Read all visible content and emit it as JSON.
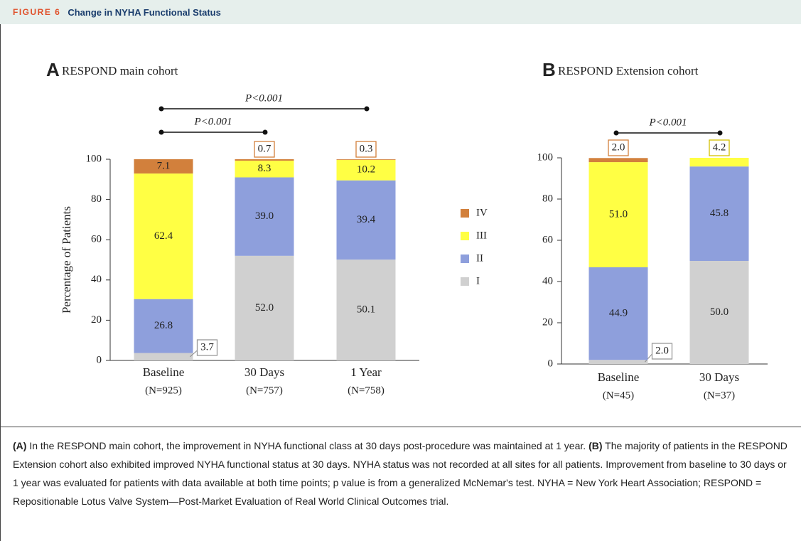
{
  "header": {
    "label": "FIGURE 6",
    "title": "Change in NYHA Functional Status"
  },
  "chart_data": [
    {
      "type": "bar",
      "stacked": true,
      "panel": "A",
      "title": "RESPOND main cohort",
      "ylabel": "Percentage of Patients",
      "categories": [
        "Baseline",
        "30 Days",
        "1 Year"
      ],
      "category_notes": [
        "(N=925)",
        "(N=757)",
        "(N=758)"
      ],
      "series": [
        {
          "name": "I",
          "color": "#d0d0d0",
          "values": [
            3.7,
            52,
            50.1
          ],
          "value_labels": [
            "3.7",
            "52.0",
            "50.1"
          ]
        },
        {
          "name": "II",
          "color": "#8e9fdc",
          "values": [
            26.8,
            39,
            39.4
          ],
          "value_labels": [
            "26.8",
            "39.0",
            "39.4"
          ]
        },
        {
          "name": "III",
          "color": "#ffff44",
          "values": [
            62.4,
            8.3,
            10.2
          ],
          "value_labels": [
            "62.4",
            "8.3",
            "10.2"
          ]
        },
        {
          "name": "IV",
          "color": "#d2803c",
          "values": [
            7.1,
            0.7,
            0.3
          ],
          "value_labels": [
            "7.1",
            "0.7",
            "0.3"
          ]
        }
      ],
      "ylim": [
        0,
        100
      ],
      "yticks": [
        0,
        20,
        40,
        60,
        80,
        100
      ],
      "brackets": [
        {
          "label": "P<0.001",
          "from": 0,
          "to": 2
        },
        {
          "label": "P<0.001",
          "from": 0,
          "to": 1
        }
      ],
      "legend": true
    },
    {
      "type": "bar",
      "stacked": true,
      "panel": "B",
      "title": "RESPOND Extension cohort",
      "categories": [
        "Baseline",
        "30 Days"
      ],
      "category_notes": [
        "(N=45)",
        "(N=37)"
      ],
      "series": [
        {
          "name": "I",
          "color": "#d0d0d0",
          "values": [
            2,
            50
          ],
          "value_labels": [
            "2.0",
            "50.0"
          ]
        },
        {
          "name": "II",
          "color": "#8e9fdc",
          "values": [
            44.9,
            45.8
          ],
          "value_labels": [
            "44.9",
            "45.8"
          ]
        },
        {
          "name": "III",
          "color": "#ffff44",
          "values": [
            51,
            4.2
          ],
          "value_labels": [
            "51.0",
            "4.2"
          ]
        },
        {
          "name": "IV",
          "color": "#d2803c",
          "values": [
            2,
            null
          ],
          "value_labels": [
            "2.0",
            null
          ]
        }
      ],
      "ylim": [
        0,
        100
      ],
      "yticks": [
        0,
        20,
        40,
        60,
        80,
        100
      ],
      "brackets": [
        {
          "label": "P<0.001",
          "from": 0,
          "to": 1
        }
      ],
      "legend": false
    }
  ],
  "caption": [
    {
      "text": "(A)",
      "bold": true
    },
    {
      "text": " In the RESPOND main cohort, the improvement in NYHA functional class at 30 days post-procedure was maintained at 1 year. ",
      "bold": false
    },
    {
      "text": "(B)",
      "bold": true
    },
    {
      "text": " The majority of patients in the RESPOND Extension cohort also exhibited improved NYHA functional status at 30 days. NYHA status was not recorded at all sites for all patients. Improvement from baseline to 30 days or 1 year was evaluated for patients with data available at both time points; p value is from a generalized McNemar's test. NYHA = New York Heart Association; RESPOND = Repositionable Lotus Valve System—Post-Market Evaluation of Real World Clinical Outcomes trial.",
      "bold": false
    }
  ]
}
